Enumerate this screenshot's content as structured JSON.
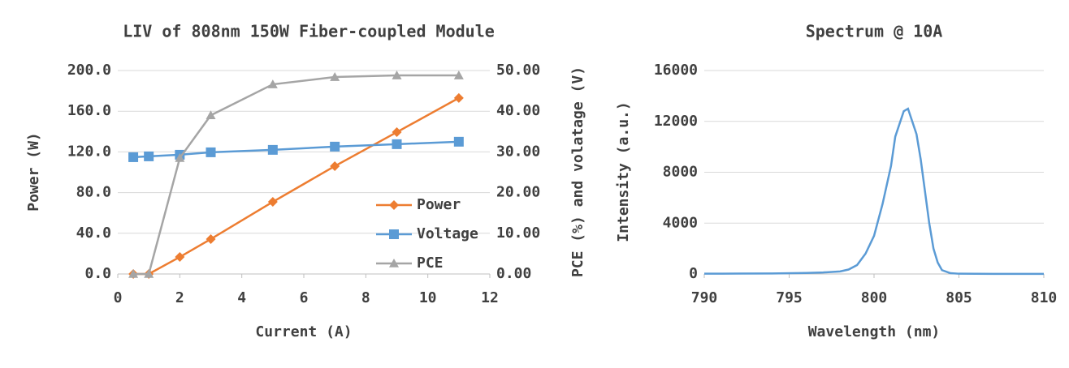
{
  "chart_data": [
    {
      "type": "line",
      "title": "LIV of 808nm 150W Fiber-coupled Module",
      "x_label": "Current (A)",
      "y_label": "Power (W)",
      "y2_label": "PCE (%) and volatage (V)",
      "x": [
        0.5,
        1,
        2,
        3,
        5,
        7,
        9,
        11
      ],
      "series": [
        {
          "name": "Power",
          "color": "#ed7d31",
          "marker": "diamond",
          "axis": "y",
          "values": [
            0,
            0,
            16.7,
            34.3,
            70.9,
            106,
            139.4,
            173
          ]
        },
        {
          "name": "Voltage",
          "color": "#5b9bd5",
          "marker": "square",
          "axis": "y2",
          "values": [
            28.7,
            28.9,
            29.3,
            29.9,
            30.5,
            31.3,
            31.9,
            32.5
          ]
        },
        {
          "name": "PCE",
          "color": "#a5a5a5",
          "marker": "triangle",
          "axis": "y2",
          "values": [
            0,
            0,
            28.5,
            39,
            46.6,
            48.4,
            48.8,
            48.8
          ]
        }
      ],
      "xlim": [
        0,
        12
      ],
      "xticks": [
        0,
        2,
        4,
        6,
        8,
        10,
        12
      ],
      "ylim": [
        0,
        200
      ],
      "yticks": [
        {
          "value": 0,
          "label": "0.0"
        },
        {
          "value": 40,
          "label": "40.0"
        },
        {
          "value": 80,
          "label": "80.0"
        },
        {
          "value": 120,
          "label": "120.0"
        },
        {
          "value": 160,
          "label": "160.0"
        },
        {
          "value": 200,
          "label": "200.0"
        }
      ],
      "y2lim": [
        0,
        50
      ],
      "y2ticks": [
        {
          "value": 0,
          "label": "0.00"
        },
        {
          "value": 10,
          "label": "10.00"
        },
        {
          "value": 20,
          "label": "20.00"
        },
        {
          "value": 30,
          "label": "30.00"
        },
        {
          "value": 40,
          "label": "40.00"
        },
        {
          "value": 50,
          "label": "50.00"
        }
      ],
      "grid": true,
      "legend": "lower right"
    },
    {
      "type": "line",
      "title": "Spectrum @ 10A",
      "x_label": "Wavelength (nm)",
      "y_label": "Intensity (a.u.)",
      "x": [
        790,
        792,
        794,
        796,
        797,
        798,
        798.5,
        799,
        799.5,
        800,
        800.5,
        801,
        801.25,
        801.5,
        801.75,
        802,
        802.25,
        802.5,
        802.75,
        803,
        803.25,
        803.5,
        803.75,
        804,
        804.5,
        805,
        807,
        810
      ],
      "series": [
        {
          "color": "#5b9bd5",
          "axis": "y",
          "values": [
            20,
            30,
            40,
            80,
            120,
            200,
            350,
            700,
            1600,
            3000,
            5500,
            8500,
            10800,
            11800,
            12800,
            13000,
            12000,
            11000,
            9000,
            6500,
            4000,
            2000,
            900,
            300,
            60,
            20,
            10,
            5
          ]
        }
      ],
      "xlim": [
        790,
        810
      ],
      "xticks": [
        790,
        795,
        800,
        805,
        810
      ],
      "ylim": [
        0,
        16000
      ],
      "yticks": [
        0,
        4000,
        8000,
        12000,
        16000
      ],
      "grid": true
    }
  ]
}
